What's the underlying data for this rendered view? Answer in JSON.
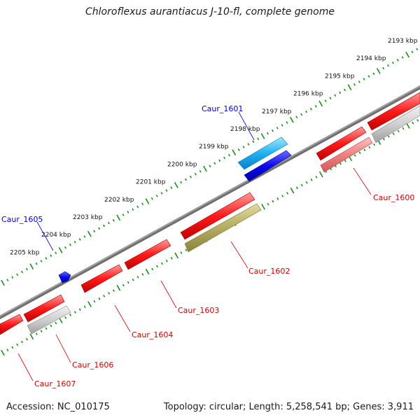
{
  "title": "Chloroflexus aurantiacus J-10-fl, complete genome",
  "footer": {
    "accession": "Accession: NC_010175",
    "summary": "Topology: circular; Length: 5,258,541 bp; Genes: 3,911"
  },
  "ticks": {
    "outer": [
      "2193 kbp",
      "2194 kbp",
      "2195 kbp",
      "2196 kbp",
      "2197 kbp",
      "2198 kbp",
      "2199 kbp",
      "2200 kbp",
      "2201 kbp",
      "2202 kbp",
      "2203 kbp",
      "2204 kbp",
      "2205 kbp"
    ]
  },
  "genes": [
    {
      "name": "Caur_1601",
      "strand": "+",
      "color": "#1e90ff"
    },
    {
      "name": "Caur_1605",
      "strand": "+",
      "color": "#1e90ff"
    },
    {
      "name": "Caur_1600",
      "strand": "-",
      "color": "#e6e6e6"
    },
    {
      "name": "Caur_1602",
      "strand": "-",
      "color": "#b8b060"
    },
    {
      "name": "Caur_1603",
      "strand": "-",
      "color": "#ff2020"
    },
    {
      "name": "Caur_1604",
      "strand": "-",
      "color": "#ff2020"
    },
    {
      "name": "Caur_1606",
      "strand": "-",
      "color": "#d9d9d9"
    },
    {
      "name": "Caur_1607",
      "strand": "-",
      "color": "#ff2020"
    }
  ],
  "colors": {
    "backbone": "#808080",
    "tick": "#1e8c1e",
    "plus_label": "#0000cc",
    "minus_label": "#cc0000"
  }
}
